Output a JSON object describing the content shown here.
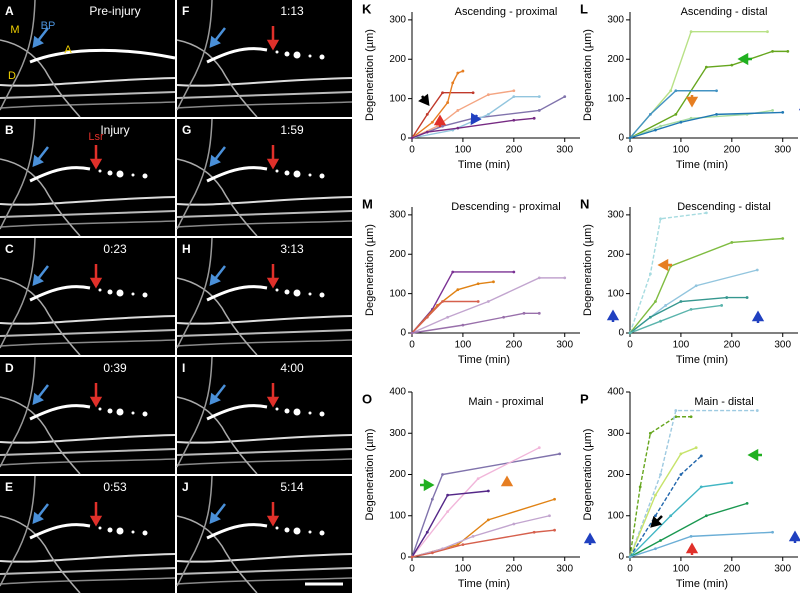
{
  "micrographs": [
    {
      "letter": "A",
      "label": "Pre-injury",
      "markers": [
        "M",
        "BP",
        "A",
        "D"
      ]
    },
    {
      "letter": "B",
      "label": "Injury",
      "markers": [
        "Lsr"
      ]
    },
    {
      "letter": "C",
      "label": "0:23"
    },
    {
      "letter": "D",
      "label": "0:39"
    },
    {
      "letter": "E",
      "label": "0:53"
    },
    {
      "letter": "F",
      "label": "1:13"
    },
    {
      "letter": "G",
      "label": "1:59"
    },
    {
      "letter": "H",
      "label": "3:13"
    },
    {
      "letter": "I",
      "label": "4:00"
    },
    {
      "letter": "J",
      "label": "5:14"
    }
  ],
  "chart_data": [
    {
      "type": "line",
      "panel": "K",
      "title": "Ascending -  proximal",
      "xlabel": "Time (min)",
      "ylabel": "Degeneration (µm)",
      "xlim": [
        0,
        330
      ],
      "ylim": [
        0,
        320
      ],
      "xticks": [
        0,
        100,
        200,
        300
      ],
      "yticks": [
        0,
        100,
        200,
        300
      ],
      "series": [
        {
          "color": "#c0392b",
          "x": [
            0,
            30,
            60,
            120
          ],
          "values": [
            0,
            60,
            115,
            115
          ]
        },
        {
          "color": "#e67e22",
          "x": [
            0,
            40,
            70,
            80,
            90,
            100
          ],
          "values": [
            0,
            40,
            90,
            140,
            165,
            170
          ]
        },
        {
          "color": "#f4a582",
          "x": [
            0,
            50,
            90,
            150,
            200
          ],
          "values": [
            0,
            30,
            70,
            110,
            120
          ]
        },
        {
          "color": "#8073ac",
          "x": [
            0,
            60,
            120,
            250,
            300
          ],
          "values": [
            0,
            30,
            50,
            70,
            105
          ]
        },
        {
          "color": "#92c5de",
          "x": [
            0,
            80,
            150,
            200,
            250
          ],
          "values": [
            0,
            20,
            60,
            105,
            105
          ]
        },
        {
          "color": "#762a83",
          "x": [
            0,
            30,
            90,
            200,
            240
          ],
          "values": [
            0,
            15,
            25,
            45,
            50
          ]
        }
      ]
    },
    {
      "type": "line",
      "panel": "L",
      "title": "Ascending - distal",
      "xlabel": "Time (min)",
      "ylabel": "Degeneration (µm)",
      "xlim": [
        0,
        330
      ],
      "ylim": [
        0,
        320
      ],
      "xticks": [
        0,
        100,
        200,
        300
      ],
      "yticks": [
        0,
        100,
        200,
        300
      ],
      "series": [
        {
          "color": "#b8e186",
          "x": [
            0,
            80,
            120,
            270
          ],
          "values": [
            0,
            120,
            270,
            270
          ]
        },
        {
          "color": "#66a61e",
          "x": [
            0,
            90,
            150,
            200,
            280,
            310
          ],
          "values": [
            0,
            60,
            180,
            185,
            220,
            220
          ]
        },
        {
          "color": "#4393c3",
          "x": [
            0,
            40,
            90,
            170
          ],
          "values": [
            0,
            60,
            120,
            120
          ]
        },
        {
          "color": "#a6dba0",
          "x": [
            0,
            60,
            120,
            230,
            280
          ],
          "values": [
            0,
            30,
            50,
            60,
            70
          ]
        },
        {
          "color": "#1f78b4",
          "x": [
            0,
            50,
            100,
            170,
            300
          ],
          "values": [
            0,
            20,
            40,
            60,
            65
          ]
        }
      ]
    },
    {
      "type": "line",
      "panel": "M",
      "title": "Descending - proximal",
      "xlabel": "Time (min)",
      "ylabel": "Degeneration (µm)",
      "xlim": [
        0,
        330
      ],
      "ylim": [
        0,
        320
      ],
      "xticks": [
        0,
        100,
        200,
        300
      ],
      "yticks": [
        0,
        100,
        200,
        300
      ],
      "series": [
        {
          "color": "#7b3294",
          "x": [
            0,
            40,
            80,
            200
          ],
          "values": [
            0,
            60,
            155,
            155
          ]
        },
        {
          "color": "#e08214",
          "x": [
            0,
            50,
            90,
            130,
            160
          ],
          "values": [
            0,
            70,
            110,
            125,
            130
          ]
        },
        {
          "color": "#c2a5cf",
          "x": [
            0,
            70,
            150,
            250,
            300
          ],
          "values": [
            0,
            40,
            80,
            140,
            140
          ]
        },
        {
          "color": "#d6604d",
          "x": [
            0,
            30,
            60,
            130
          ],
          "values": [
            0,
            40,
            80,
            80
          ]
        },
        {
          "color": "#9970ab",
          "x": [
            0,
            100,
            180,
            220,
            250
          ],
          "values": [
            0,
            20,
            40,
            50,
            50
          ]
        }
      ]
    },
    {
      "type": "line",
      "panel": "N",
      "title": "Descending - distal",
      "xlabel": "Time (min)",
      "ylabel": "Degeneration (µm)",
      "xlim": [
        0,
        330
      ],
      "ylim": [
        0,
        320
      ],
      "xticks": [
        0,
        100,
        200,
        300
      ],
      "yticks": [
        0,
        100,
        200,
        300
      ],
      "series": [
        {
          "color": "#a6dbe0",
          "dashed": true,
          "x": [
            0,
            40,
            60,
            150
          ],
          "values": [
            0,
            150,
            290,
            305
          ]
        },
        {
          "color": "#7fbc41",
          "x": [
            0,
            50,
            80,
            200,
            300
          ],
          "values": [
            0,
            80,
            170,
            230,
            240
          ]
        },
        {
          "color": "#92c5de",
          "x": [
            0,
            70,
            130,
            250
          ],
          "values": [
            0,
            70,
            120,
            160
          ]
        },
        {
          "color": "#35978f",
          "x": [
            0,
            40,
            100,
            190,
            230
          ],
          "values": [
            0,
            40,
            80,
            90,
            90
          ]
        },
        {
          "color": "#5ab4ac",
          "x": [
            0,
            60,
            120,
            180
          ],
          "values": [
            0,
            30,
            60,
            70
          ]
        }
      ]
    },
    {
      "type": "line",
      "panel": "O",
      "title": "Main - proximal",
      "xlabel": "Time (min)",
      "ylabel": "Degeneration (µm)",
      "xlim": [
        0,
        330
      ],
      "ylim": [
        0,
        400
      ],
      "xticks": [
        0,
        100,
        200,
        300
      ],
      "yticks": [
        0,
        100,
        200,
        300,
        400
      ],
      "series": [
        {
          "color": "#8073ac",
          "x": [
            0,
            40,
            60,
            290
          ],
          "values": [
            0,
            140,
            200,
            250
          ]
        },
        {
          "color": "#f1b6da",
          "x": [
            0,
            70,
            130,
            250
          ],
          "values": [
            0,
            110,
            190,
            265
          ]
        },
        {
          "color": "#e08214",
          "x": [
            0,
            90,
            150,
            280
          ],
          "values": [
            0,
            30,
            90,
            140
          ]
        },
        {
          "color": "#542788",
          "x": [
            0,
            30,
            70,
            150
          ],
          "values": [
            0,
            60,
            150,
            160
          ]
        },
        {
          "color": "#c2a5cf",
          "x": [
            0,
            60,
            120,
            200,
            270
          ],
          "values": [
            0,
            20,
            50,
            80,
            100
          ]
        },
        {
          "color": "#d6604d",
          "x": [
            0,
            40,
            100,
            240,
            280
          ],
          "values": [
            0,
            10,
            30,
            60,
            65
          ]
        }
      ]
    },
    {
      "type": "line",
      "panel": "P",
      "title": "Main - distal",
      "xlabel": "Time (min)",
      "ylabel": "Degeneration (µm)",
      "xlim": [
        0,
        330
      ],
      "ylim": [
        0,
        400
      ],
      "xticks": [
        0,
        100,
        200,
        300
      ],
      "yticks": [
        0,
        100,
        200,
        300,
        400
      ],
      "series": [
        {
          "color": "#66a61e",
          "dashed": true,
          "x": [
            0,
            20,
            40,
            90,
            120
          ],
          "values": [
            0,
            170,
            300,
            340,
            340
          ]
        },
        {
          "color": "#9ecae1",
          "dashed": true,
          "x": [
            0,
            60,
            90,
            250
          ],
          "values": [
            0,
            200,
            355,
            355
          ]
        },
        {
          "color": "#c7e36b",
          "x": [
            0,
            50,
            100,
            130
          ],
          "values": [
            0,
            150,
            250,
            265
          ]
        },
        {
          "color": "#2166ac",
          "dashed": true,
          "x": [
            0,
            50,
            100,
            140
          ],
          "values": [
            0,
            100,
            200,
            245
          ]
        },
        {
          "color": "#41b6c4",
          "x": [
            0,
            80,
            140,
            200
          ],
          "values": [
            0,
            100,
            170,
            180
          ]
        },
        {
          "color": "#1a9850",
          "x": [
            0,
            60,
            150,
            230
          ],
          "values": [
            0,
            40,
            100,
            130
          ]
        },
        {
          "color": "#6baed6",
          "x": [
            0,
            50,
            120,
            280
          ],
          "values": [
            0,
            20,
            50,
            60
          ]
        }
      ]
    }
  ]
}
